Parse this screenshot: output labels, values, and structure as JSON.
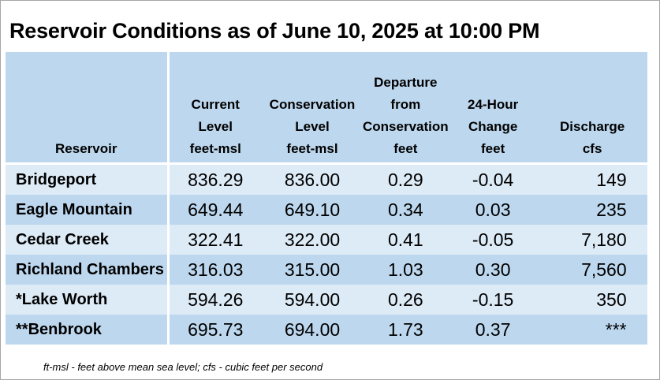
{
  "title": "Reservoir Conditions as of June 10, 2025 at 10:00 PM",
  "columns": [
    [
      "Reservoir"
    ],
    [
      "Current",
      "Level",
      "feet-msl"
    ],
    [
      "Conservation",
      "Level",
      "feet-msl"
    ],
    [
      "Departure",
      "from",
      "Conservation",
      "feet"
    ],
    [
      "24-Hour",
      "Change",
      "feet"
    ],
    [
      "Discharge",
      "cfs"
    ]
  ],
  "rows": [
    {
      "name": "Bridgeport",
      "current": "836.29",
      "conservation": "836.00",
      "departure": "0.29",
      "change": "-0.04",
      "discharge": "149"
    },
    {
      "name": "Eagle Mountain",
      "current": "649.44",
      "conservation": "649.10",
      "departure": "0.34",
      "change": "0.03",
      "discharge": "235"
    },
    {
      "name": "Cedar Creek",
      "current": "322.41",
      "conservation": "322.00",
      "departure": "0.41",
      "change": "-0.05",
      "discharge": "7,180"
    },
    {
      "name": "Richland Chambers",
      "current": "316.03",
      "conservation": "315.00",
      "departure": "1.03",
      "change": "0.30",
      "discharge": "7,560"
    },
    {
      "name": "*Lake Worth",
      "current": "594.26",
      "conservation": "594.00",
      "departure": "0.26",
      "change": "-0.15",
      "discharge": "350"
    },
    {
      "name": "**Benbrook",
      "current": "695.73",
      "conservation": "694.00",
      "departure": "1.73",
      "change": "0.37",
      "discharge": "***"
    }
  ],
  "footnote": "ft-msl - feet above mean sea level; cfs - cubic feet per second",
  "colors": {
    "header": "#bdd7ee",
    "row_light": "#ddebf7",
    "row_dark": "#bdd7ee"
  }
}
